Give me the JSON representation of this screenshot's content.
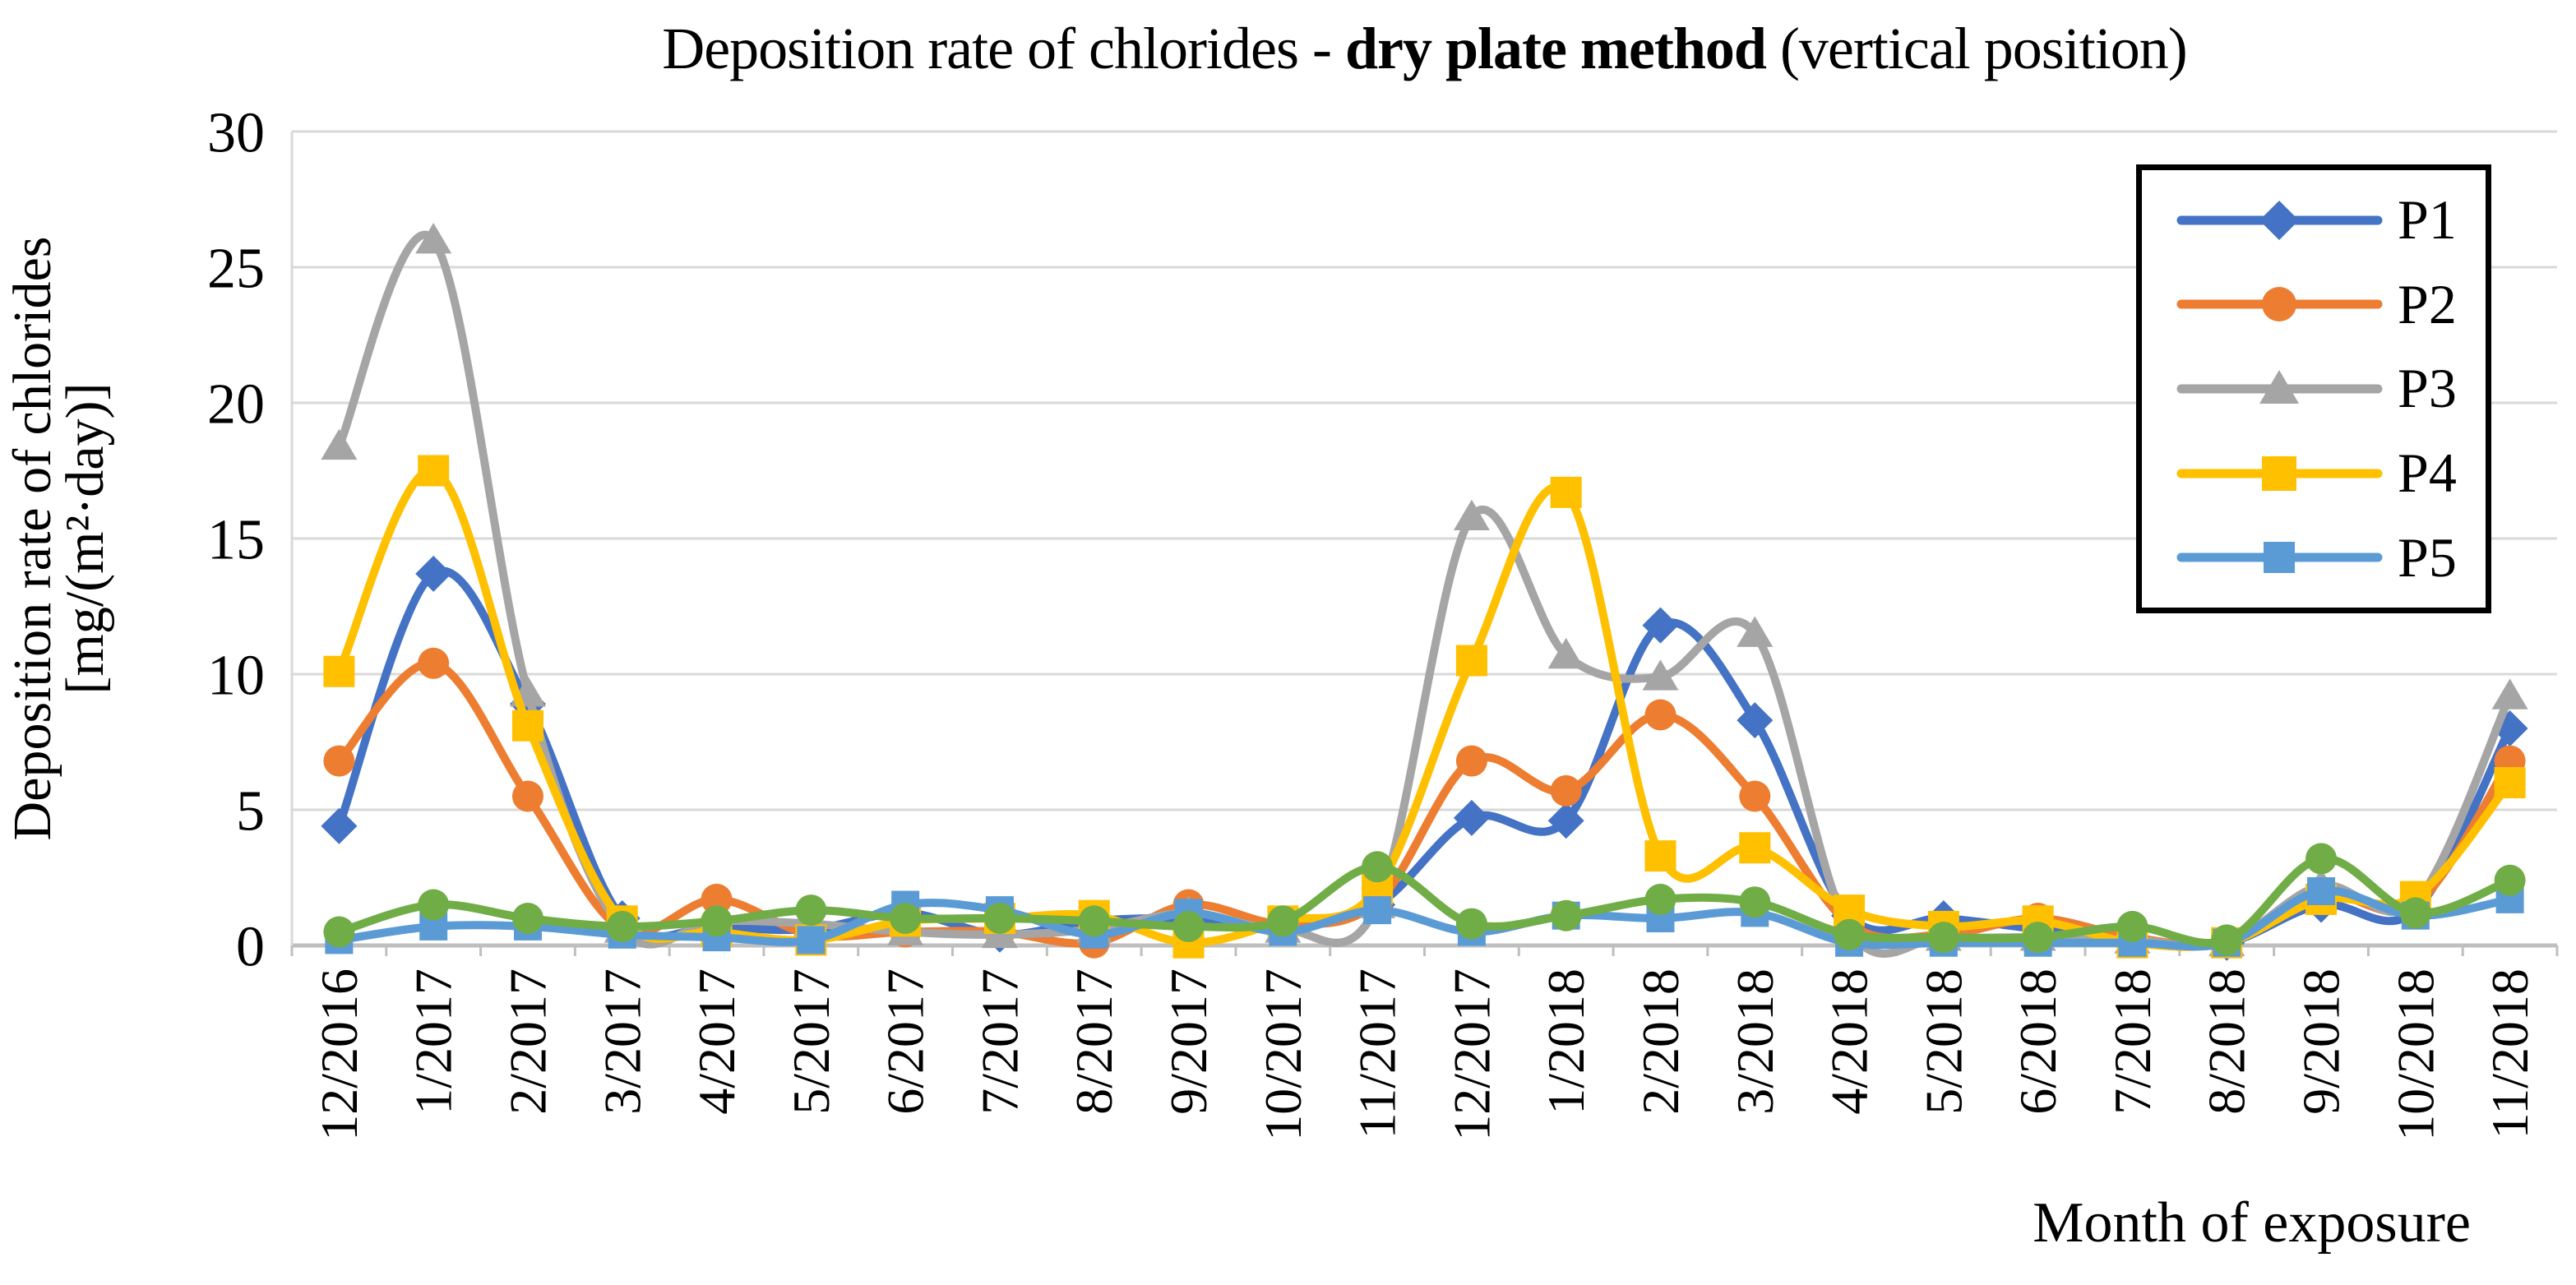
{
  "title": {
    "prefix": "Deposition rate of chlorides - ",
    "bold": "dry plate method",
    "suffix": " (vertical position)"
  },
  "y_axis": {
    "title_line1": "Deposition rate of chlorides",
    "title_line2": "[mg/(m²·day)]",
    "ticks": [
      30,
      25,
      20,
      15,
      10,
      5,
      0
    ],
    "min": 0,
    "max": 30
  },
  "x_axis": {
    "title": "Month of exposure"
  },
  "legend": {
    "entries": [
      "P1",
      "P2",
      "P3",
      "P4",
      "P5"
    ],
    "border_color": "#000000",
    "position": "top-right"
  },
  "chart_data": {
    "type": "line",
    "smooth": true,
    "grid": true,
    "ylim": [
      0,
      30
    ],
    "legend_position": "top-right",
    "gridline_color": "#D9D9D9",
    "axis_color": "#BFBFBF",
    "categories": [
      "12/2016",
      "1/2017",
      "2/2017",
      "3/2017",
      "4/2017",
      "5/2017",
      "6/2017",
      "7/2017",
      "8/2017",
      "9/2017",
      "10/2017",
      "11/2017",
      "12/2017",
      "1/2018",
      "2/2018",
      "3/2018",
      "4/2018",
      "5/2018",
      "6/2018",
      "7/2018",
      "8/2018",
      "9/2018",
      "10/2018",
      "11/2018"
    ],
    "series": [
      {
        "name": "P1",
        "color": "#4472C4",
        "marker": "diamond",
        "in_legend": true,
        "values": [
          4.4,
          13.7,
          8.9,
          1.0,
          0.7,
          0.6,
          1.2,
          0.4,
          0.9,
          1.0,
          0.8,
          1.5,
          4.7,
          4.6,
          11.8,
          8.3,
          1.1,
          1.0,
          0.6,
          0.2,
          0.1,
          1.5,
          1.3,
          8.0
        ]
      },
      {
        "name": "P2",
        "color": "#ED7D31",
        "marker": "circle",
        "in_legend": true,
        "values": [
          6.8,
          10.4,
          5.5,
          0.6,
          1.7,
          0.4,
          0.5,
          0.5,
          0.1,
          1.5,
          0.8,
          1.6,
          6.8,
          5.7,
          8.5,
          5.5,
          0.8,
          0.4,
          1.0,
          0.3,
          0.1,
          1.9,
          1.5,
          6.8
        ]
      },
      {
        "name": "P3",
        "color": "#A5A5A5",
        "marker": "triangle",
        "in_legend": true,
        "values": [
          18.4,
          26.0,
          9.3,
          0.6,
          0.9,
          0.8,
          0.5,
          0.4,
          0.6,
          1.2,
          0.6,
          1.5,
          15.8,
          10.7,
          9.9,
          11.5,
          0.6,
          0.3,
          0.3,
          0.2,
          0.1,
          2.2,
          1.6,
          9.2
        ]
      },
      {
        "name": "P4",
        "color": "#FFC000",
        "marker": "square",
        "in_legend": true,
        "values": [
          10.1,
          17.5,
          8.1,
          0.9,
          0.5,
          0.2,
          0.9,
          1.0,
          1.1,
          0.1,
          0.9,
          2.1,
          10.5,
          16.7,
          3.3,
          3.6,
          1.3,
          0.7,
          0.9,
          0.1,
          0.1,
          1.7,
          1.8,
          6.0
        ]
      },
      {
        "name": "P5",
        "color": "#5B9BD5",
        "marker": "square",
        "in_legend": true,
        "values": [
          0.2,
          0.7,
          0.7,
          0.4,
          0.3,
          0.2,
          1.5,
          1.3,
          0.4,
          1.2,
          0.5,
          1.3,
          0.5,
          1.1,
          1.0,
          1.2,
          0.1,
          0.1,
          0.1,
          0.1,
          0.1,
          2.0,
          1.1,
          1.7
        ]
      },
      {
        "name": "",
        "color": "#70AD47",
        "marker": "circle",
        "in_legend": false,
        "values": [
          0.5,
          1.5,
          1.0,
          0.7,
          0.9,
          1.3,
          1.0,
          1.0,
          0.9,
          0.7,
          0.9,
          2.9,
          0.8,
          1.1,
          1.7,
          1.6,
          0.4,
          0.3,
          0.3,
          0.7,
          0.2,
          3.2,
          1.2,
          2.4
        ]
      }
    ]
  }
}
